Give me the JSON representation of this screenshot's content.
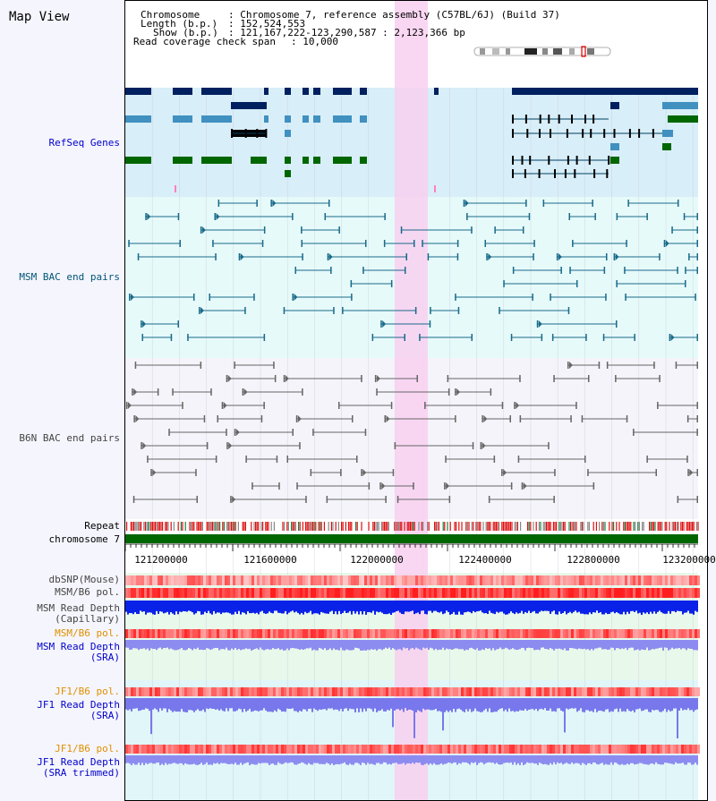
{
  "title": "Map View",
  "info": {
    "chromosome_label": "Chromosome",
    "chromosome_value": ": Chromosome 7, reference assembly (C57BL/6J) (Build 37)",
    "length_label": "Length (b.p.)",
    "length_value": ": 152,524,553",
    "show_label": "Show (b.p.)",
    "show_value": ": 121,167,222-123,290,587 : 2,123,366 bp",
    "coverage_label": "Read coverage check span",
    "coverage_value": ": 10,000"
  },
  "tracks": {
    "refseq": "RefSeq Genes",
    "msm_bac": "MSM BAC end pairs",
    "b6n_bac": "B6N BAC end pairs",
    "repeat": "Repeat",
    "chromosome": "chromosome 7",
    "dbsnp": "dbSNP(Mouse)",
    "msm_b6_pol_1": "MSM/B6 pol.",
    "msm_read_depth_cap_1": "MSM Read Depth",
    "msm_read_depth_cap_2": "(Capillary)",
    "msm_b6_pol_2": "MSM/B6 pol.",
    "msm_read_depth_sra_1": "MSM Read Depth",
    "msm_read_depth_sra_2": "(SRA)",
    "jf1_b6_pol_1": "JF1/B6 pol.",
    "jf1_read_depth_sra_1": "JF1 Read Depth",
    "jf1_read_depth_sra_2": "(SRA)",
    "jf1_b6_pol_2": "JF1/B6 pol.",
    "jf1_read_depth_trim_1": "JF1 Read Depth",
    "jf1_read_depth_trim_2": "(SRA trimmed)"
  },
  "axis": {
    "ticks": [
      "121200000",
      "121600000",
      "122000000",
      "122400000",
      "122800000",
      "123200000"
    ]
  },
  "colors": {
    "refseq_bg": "#d8eef8",
    "bac_bg": "#e6fafa",
    "b6n_bg": "#f4f4fa",
    "highlight": "#f8d0f0",
    "chrom_bar": "#006600",
    "label_blue": "#0000cc",
    "label_teal": "#005577",
    "label_orange": "#e09000",
    "label_gray": "#444444"
  }
}
